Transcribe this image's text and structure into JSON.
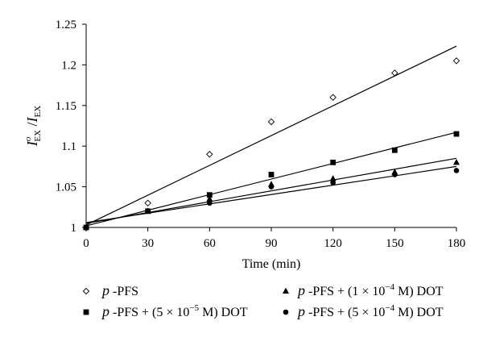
{
  "chart_data": {
    "type": "scatter",
    "xlabel": "Time (min)",
    "ylabel": "I^o_EX / I_EX",
    "ylabel_parts": {
      "num_main": "I",
      "num_sup": "o",
      "num_sub": "EX",
      "slash": " /",
      "den_main": "I",
      "den_sub": "EX"
    },
    "xlim": [
      0,
      180
    ],
    "ylim": [
      1,
      1.25
    ],
    "x_ticks": [
      0,
      30,
      60,
      90,
      120,
      150,
      180
    ],
    "x_tick_labels": [
      "0",
      "30",
      "60",
      "90",
      "120",
      "150",
      "180"
    ],
    "y_ticks": [
      1,
      1.05,
      1.1,
      1.15,
      1.2,
      1.25
    ],
    "y_tick_labels": [
      "1",
      "1.05",
      "1.1",
      "1.15",
      "1.2",
      "1.25"
    ],
    "grid": false,
    "legend_placement": "bottom",
    "series": [
      {
        "name": "p -PFS",
        "name_parts": {
          "italic": "p",
          "rest": " -PFS"
        },
        "marker": "diamond-open",
        "x": [
          0,
          30,
          60,
          90,
          120,
          150,
          180
        ],
        "y": [
          1.0,
          1.03,
          1.09,
          1.13,
          1.16,
          1.19,
          1.205
        ],
        "fit": {
          "x": [
            0,
            180
          ],
          "y": [
            1.003,
            1.223
          ]
        }
      },
      {
        "name": "p -PFS + (5 × 10−5 M) DOT",
        "name_parts": {
          "italic": "p",
          "pre": " -PFS + (5 × 10",
          "sup": "−5",
          "post": " M) DOT"
        },
        "marker": "square",
        "x": [
          0,
          30,
          60,
          90,
          120,
          150,
          180
        ],
        "y": [
          1.0,
          1.02,
          1.04,
          1.065,
          1.08,
          1.095,
          1.115
        ],
        "fit": {
          "x": [
            0,
            180
          ],
          "y": [
            1.002,
            1.117
          ]
        }
      },
      {
        "name": "p -PFS + (1 × 10−4 M) DOT",
        "name_parts": {
          "italic": "p",
          "pre": " -PFS + (1 × 10",
          "sup": "−4",
          "post": " M) DOT"
        },
        "marker": "triangle",
        "x": [
          0,
          30,
          60,
          90,
          120,
          150,
          180
        ],
        "y": [
          1.0,
          1.02,
          1.035,
          1.053,
          1.06,
          1.068,
          1.08
        ],
        "fit": {
          "x": [
            0,
            180
          ],
          "y": [
            1.005,
            1.085
          ]
        }
      },
      {
        "name": "p -PFS + (5 × 10−4 M) DOT",
        "name_parts": {
          "italic": "p",
          "pre": " -PFS + (5 × 10",
          "sup": "−4",
          "post": " M) DOT"
        },
        "marker": "circle",
        "x": [
          0,
          30,
          60,
          90,
          120,
          150,
          180
        ],
        "y": [
          1.0,
          1.02,
          1.03,
          1.05,
          1.055,
          1.065,
          1.07
        ],
        "fit": {
          "x": [
            0,
            180
          ],
          "y": [
            1.006,
            1.075
          ]
        }
      }
    ]
  }
}
